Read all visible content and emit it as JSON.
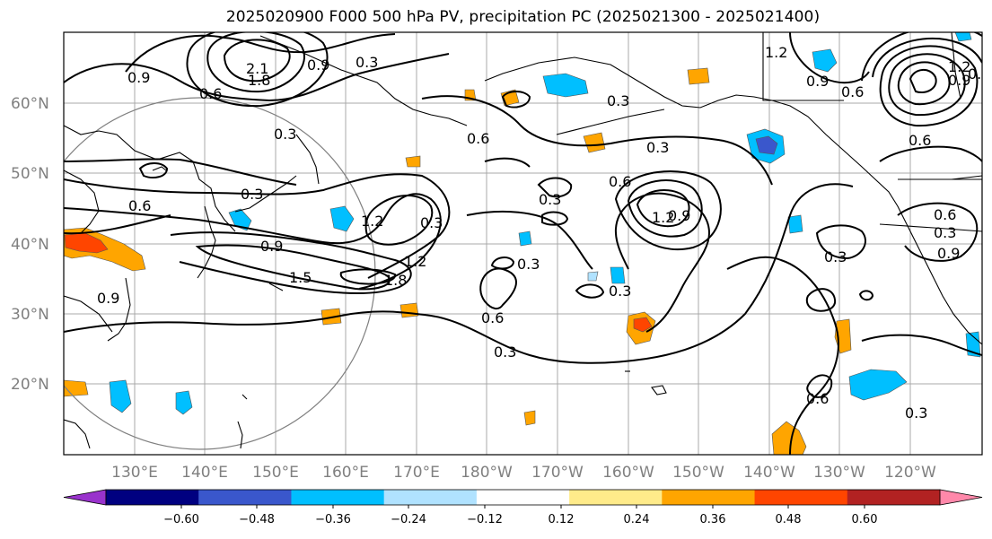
{
  "title": "2025020900 F000 500 hPa PV, precipitation PC (2025021300 - 2025021400)",
  "colors": {
    "contour": "#000000",
    "grid": "#a9a9a9",
    "coast": "#000000",
    "axis_label": "#808080"
  },
  "map": {
    "lat_labels": [
      "60°N",
      "50°N",
      "40°N",
      "30°N",
      "20°N"
    ],
    "lon_labels": [
      "130°E",
      "140°E",
      "150°E",
      "160°E",
      "170°E",
      "180°W",
      "170°W",
      "160°W",
      "150°W",
      "140°W",
      "130°W",
      "120°W"
    ],
    "contour_labels": [
      "0.9",
      "2.1",
      "1.8",
      "0.9",
      "0.3",
      "1.2",
      "0.9",
      "0.6",
      "0.6",
      "0.3",
      "0.6",
      "0.3",
      "0.3",
      "0.6",
      "0.3",
      "0.6",
      "0.3",
      "0.6",
      "1.2",
      "0.9",
      "0.9",
      "0.6",
      "0.9",
      "0.3",
      "1.5",
      "1.8",
      "1.2",
      "1.2",
      "0.3",
      "0.3",
      "0.3",
      "0.6",
      "0.3",
      "0.9",
      "0.6",
      "0.3",
      "0.3",
      "0.9",
      "1.2",
      "0.9"
    ]
  },
  "colorbar": {
    "colors": [
      "#9932cc",
      "#000080",
      "#3a57cc",
      "#00bfff",
      "#b0e2ff",
      "#ffffff",
      "#ffeb8a",
      "#ffa500",
      "#ff4500",
      "#b22222",
      "#ff88aa"
    ],
    "tick_labels": [
      "−0.60",
      "−0.48",
      "−0.36",
      "−0.24",
      "−0.12",
      "0.12",
      "0.24",
      "0.36",
      "0.48",
      "0.60"
    ]
  }
}
